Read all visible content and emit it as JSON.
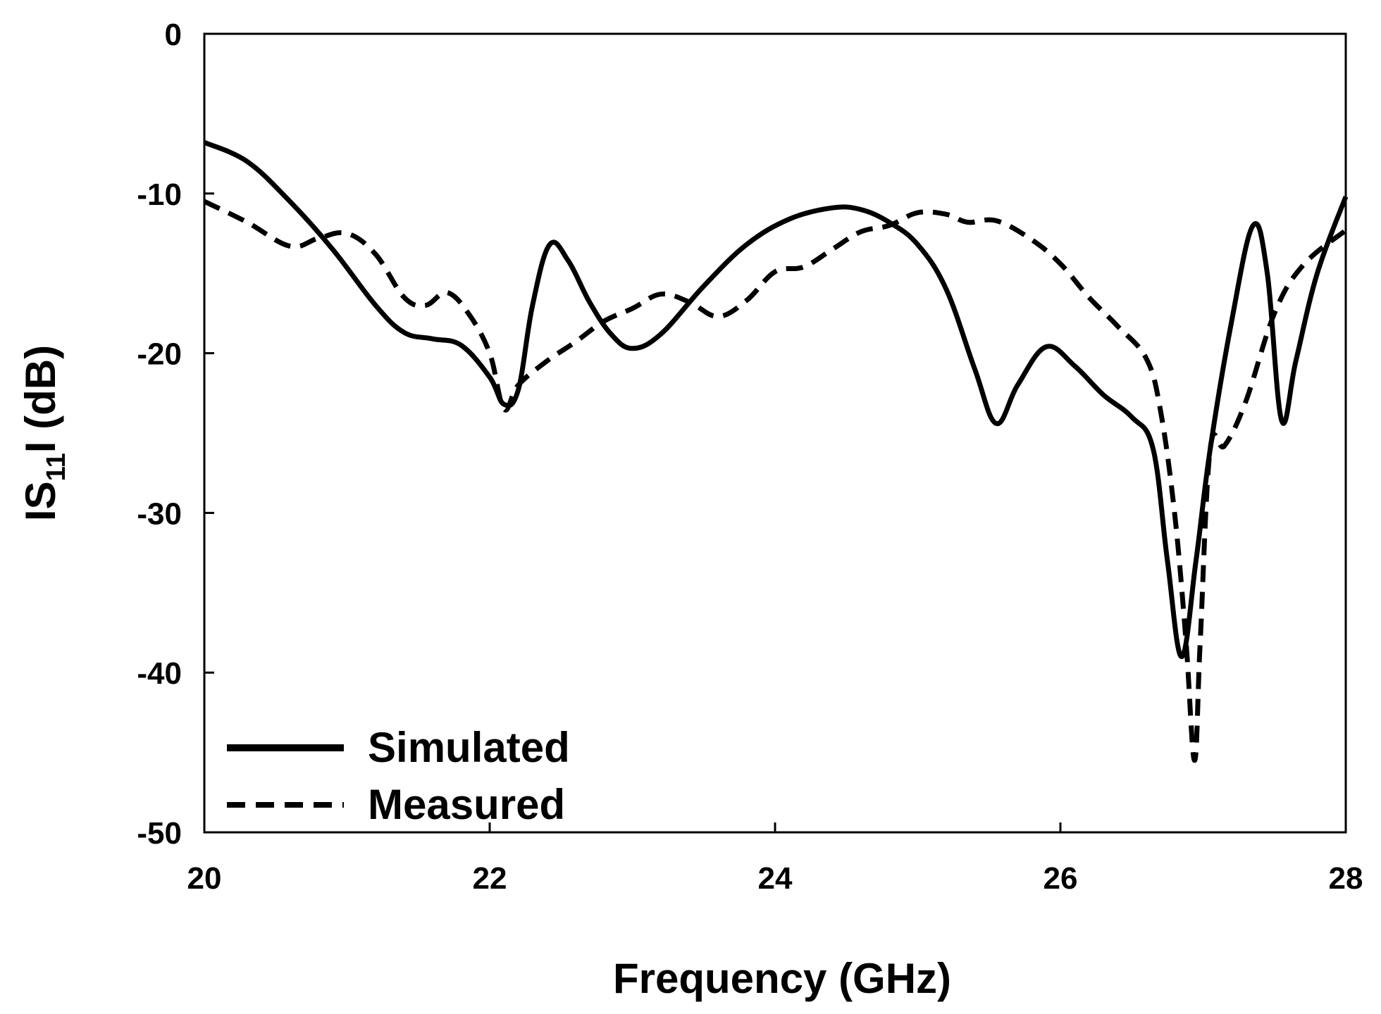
{
  "chart_data": {
    "type": "line",
    "title": "",
    "xlabel": "Frequency (GHz)",
    "ylabel": {
      "prefix": "IS",
      "sub": "11",
      "suffix": "I (dB)"
    },
    "xlim": [
      20,
      28
    ],
    "ylim": [
      -50,
      0
    ],
    "xticks": [
      20,
      22,
      24,
      26,
      28
    ],
    "yticks": [
      0,
      -10,
      -20,
      -30,
      -40,
      -50
    ],
    "xtick_labels": [
      "20",
      "22",
      "24",
      "26",
      "28"
    ],
    "ytick_labels": [
      "0",
      "-10",
      "-20",
      "-30",
      "-40",
      "-50"
    ],
    "grid": false,
    "legend_position": "bottom-left",
    "series": [
      {
        "name": "Simulated",
        "style": "solid",
        "points": [
          [
            20.0,
            -6.8
          ],
          [
            20.3,
            -8.0
          ],
          [
            20.6,
            -10.5
          ],
          [
            20.9,
            -13.5
          ],
          [
            21.2,
            -17.0
          ],
          [
            21.4,
            -18.7
          ],
          [
            21.6,
            -19.1
          ],
          [
            21.8,
            -19.5
          ],
          [
            22.0,
            -21.5
          ],
          [
            22.1,
            -23.2
          ],
          [
            22.2,
            -22.3
          ],
          [
            22.3,
            -17.0
          ],
          [
            22.42,
            -13.2
          ],
          [
            22.55,
            -14.2
          ],
          [
            22.7,
            -16.8
          ],
          [
            22.85,
            -18.8
          ],
          [
            23.0,
            -19.7
          ],
          [
            23.2,
            -18.8
          ],
          [
            23.5,
            -15.8
          ],
          [
            23.8,
            -13.2
          ],
          [
            24.1,
            -11.6
          ],
          [
            24.4,
            -10.9
          ],
          [
            24.6,
            -11.0
          ],
          [
            24.8,
            -11.8
          ],
          [
            25.0,
            -13.2
          ],
          [
            25.2,
            -16.0
          ],
          [
            25.4,
            -21.0
          ],
          [
            25.55,
            -24.4
          ],
          [
            25.7,
            -22.0
          ],
          [
            25.9,
            -19.6
          ],
          [
            26.1,
            -20.8
          ],
          [
            26.3,
            -22.6
          ],
          [
            26.5,
            -24.0
          ],
          [
            26.65,
            -26.0
          ],
          [
            26.75,
            -33.0
          ],
          [
            26.85,
            -39.0
          ],
          [
            26.95,
            -33.0
          ],
          [
            27.05,
            -26.0
          ],
          [
            27.2,
            -18.0
          ],
          [
            27.35,
            -12.0
          ],
          [
            27.45,
            -15.0
          ],
          [
            27.55,
            -24.2
          ],
          [
            27.65,
            -20.5
          ],
          [
            27.8,
            -15.0
          ],
          [
            28.0,
            -10.2
          ]
        ]
      },
      {
        "name": "Measured",
        "style": "dashed",
        "points": [
          [
            20.0,
            -10.5
          ],
          [
            20.3,
            -11.8
          ],
          [
            20.6,
            -13.3
          ],
          [
            20.8,
            -12.8
          ],
          [
            21.0,
            -12.5
          ],
          [
            21.2,
            -13.8
          ],
          [
            21.4,
            -16.5
          ],
          [
            21.55,
            -17.0
          ],
          [
            21.7,
            -16.2
          ],
          [
            21.85,
            -17.5
          ],
          [
            22.0,
            -20.0
          ],
          [
            22.1,
            -23.5
          ],
          [
            22.2,
            -22.0
          ],
          [
            22.4,
            -20.5
          ],
          [
            22.6,
            -19.3
          ],
          [
            22.8,
            -18.0
          ],
          [
            23.0,
            -17.2
          ],
          [
            23.2,
            -16.3
          ],
          [
            23.4,
            -16.8
          ],
          [
            23.6,
            -17.7
          ],
          [
            23.8,
            -16.7
          ],
          [
            24.0,
            -14.9
          ],
          [
            24.2,
            -14.6
          ],
          [
            24.4,
            -13.5
          ],
          [
            24.6,
            -12.4
          ],
          [
            24.8,
            -12.0
          ],
          [
            25.0,
            -11.2
          ],
          [
            25.2,
            -11.3
          ],
          [
            25.35,
            -11.8
          ],
          [
            25.55,
            -11.7
          ],
          [
            25.8,
            -12.9
          ],
          [
            26.0,
            -14.4
          ],
          [
            26.2,
            -16.5
          ],
          [
            26.4,
            -18.3
          ],
          [
            26.6,
            -20.3
          ],
          [
            26.7,
            -23.5
          ],
          [
            26.8,
            -30.0
          ],
          [
            26.88,
            -38.0
          ],
          [
            26.94,
            -45.5
          ],
          [
            26.98,
            -38.0
          ],
          [
            27.05,
            -26.0
          ],
          [
            27.15,
            -25.8
          ],
          [
            27.3,
            -23.0
          ],
          [
            27.5,
            -17.5
          ],
          [
            27.7,
            -14.5
          ],
          [
            28.0,
            -12.3
          ]
        ]
      }
    ]
  }
}
